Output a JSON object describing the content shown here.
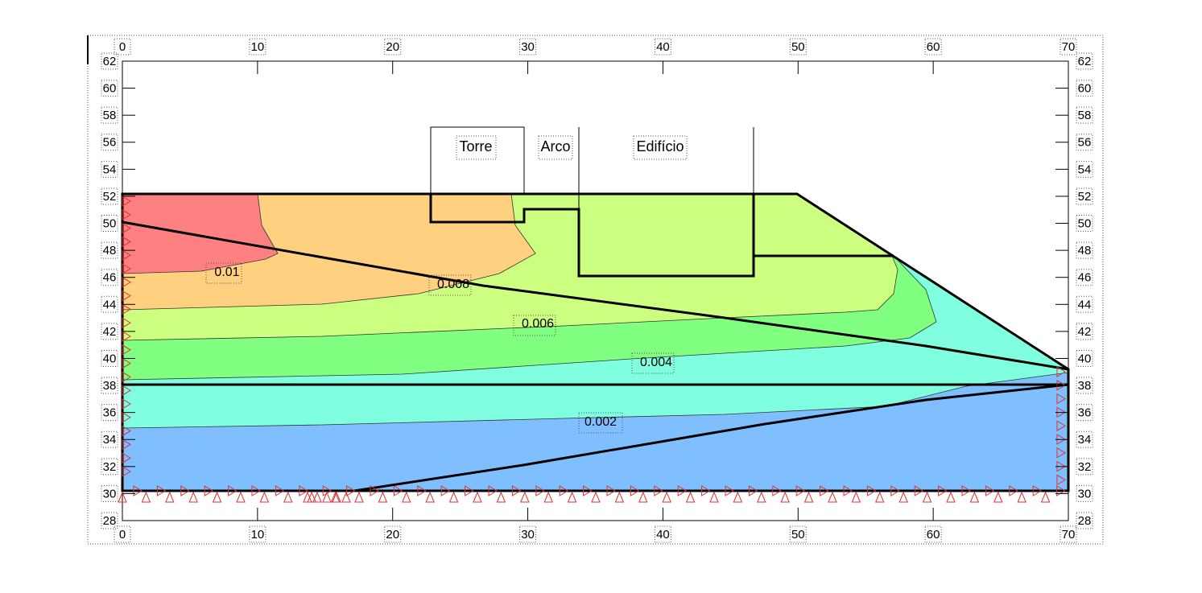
{
  "chart_data": {
    "type": "contour",
    "xlim": [
      0,
      70
    ],
    "ylim": [
      28,
      62
    ],
    "xticks": [
      0,
      10,
      20,
      30,
      40,
      50,
      60,
      70
    ],
    "yticks": [
      28,
      30,
      32,
      34,
      36,
      38,
      40,
      42,
      44,
      46,
      48,
      50,
      52,
      54,
      56,
      58,
      60,
      62
    ],
    "contour_levels": [
      0.01,
      0.008,
      0.006,
      0.004,
      0.002
    ],
    "annotations": [
      "Torre",
      "Arco",
      "Edifício"
    ]
  }
}
